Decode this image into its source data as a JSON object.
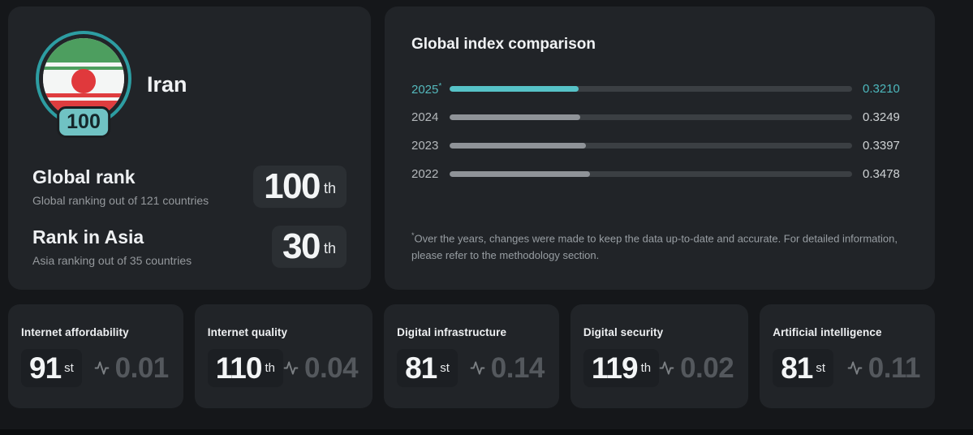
{
  "colors": {
    "accent_teal": "#56c2c7",
    "accent_teal_text": "#4db8bd",
    "bar_track": "#3b3f43",
    "bar_gray_fill": "#8f9398",
    "card_bg": "#212428",
    "page_bg": "#15171a",
    "flag_green": "#4d9e5f",
    "flag_red": "#e0393c",
    "badge_teal": "#70c2c3"
  },
  "icons": {
    "metric_score": "pulse-activity-icon",
    "flag": "iran-flag-roundel"
  },
  "country_card": {
    "name": "Iran",
    "badge_score": "100",
    "rank_rows": [
      {
        "title": "Global rank",
        "subtitle": "Global ranking out of 121 countries",
        "value": "100",
        "suffix": "th"
      },
      {
        "title": "Rank in Asia",
        "subtitle": "Asia ranking out of 35 countries",
        "value": "30",
        "suffix": "th"
      }
    ]
  },
  "comparison_card": {
    "title": "Global index comparison",
    "footnote_marker": "*",
    "footnote": "Over the years, changes were made to keep the data up-to-date and accurate. For detailed information, please refer to the methodology section."
  },
  "chart_data": {
    "type": "bar",
    "orientation": "horizontal",
    "title": "Global index comparison",
    "xlim": [
      0,
      1
    ],
    "grid": false,
    "legend": false,
    "highlight_index": 0,
    "categories": [
      "2025",
      "2024",
      "2023",
      "2022"
    ],
    "values": [
      0.321,
      0.3249,
      0.3397,
      0.3478
    ],
    "rows": [
      {
        "year": "2025",
        "marker": "*",
        "value": 0.321,
        "label": "0.3210",
        "highlight": true
      },
      {
        "year": "2024",
        "marker": "",
        "value": 0.3249,
        "label": "0.3249",
        "highlight": false
      },
      {
        "year": "2023",
        "marker": "",
        "value": 0.3397,
        "label": "0.3397",
        "highlight": false
      },
      {
        "year": "2022",
        "marker": "",
        "value": 0.3478,
        "label": "0.3478",
        "highlight": false
      }
    ]
  },
  "metric_cards": [
    {
      "title": "Internet affordability",
      "rank": "91",
      "suffix": "st",
      "score": "0.01"
    },
    {
      "title": "Internet quality",
      "rank": "110",
      "suffix": "th",
      "score": "0.04"
    },
    {
      "title": "Digital infrastructure",
      "rank": "81",
      "suffix": "st",
      "score": "0.14"
    },
    {
      "title": "Digital security",
      "rank": "119",
      "suffix": "th",
      "score": "0.02"
    },
    {
      "title": "Artificial intelligence",
      "rank": "81",
      "suffix": "st",
      "score": "0.11"
    }
  ]
}
